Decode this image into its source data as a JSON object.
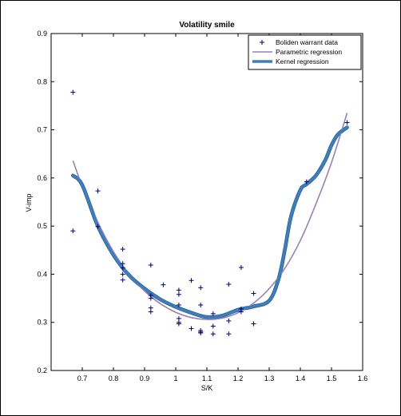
{
  "chart_data": {
    "type": "scatter",
    "title": "Volatility smile",
    "xlabel": "S/K",
    "ylabel": "V-imp",
    "xlim": [
      0.6,
      1.6
    ],
    "ylim": [
      0.2,
      0.9
    ],
    "xticks": [
      "0.7",
      "0.8",
      "0.9",
      "1",
      "1.1",
      "1.2",
      "1.3",
      "1.4",
      "1.5",
      "1.6"
    ],
    "yticks": [
      "0.2",
      "0.3",
      "0.4",
      "0.5",
      "0.6",
      "0.7",
      "0.8",
      "0.9"
    ],
    "grid": false,
    "legend_position": "top-right",
    "series": [
      {
        "name": "Boliden warrant data",
        "type": "scatter",
        "color": "#000080",
        "marker": "plus",
        "x": [
          0.67,
          0.67,
          0.75,
          0.75,
          0.83,
          0.83,
          0.83,
          0.83,
          0.83,
          0.92,
          0.92,
          0.92,
          0.92,
          0.92,
          0.96,
          1.01,
          1.01,
          1.01,
          1.01,
          1.01,
          1.01,
          1.05,
          1.05,
          1.08,
          1.08,
          1.08,
          1.08,
          1.08,
          1.12,
          1.12,
          1.12,
          1.17,
          1.17,
          1.17,
          1.21,
          1.21,
          1.21,
          1.25,
          1.25,
          1.42,
          1.55
        ],
        "y": [
          0.778,
          0.49,
          0.573,
          0.499,
          0.452,
          0.422,
          0.413,
          0.4,
          0.388,
          0.419,
          0.356,
          0.33,
          0.322,
          0.35,
          0.378,
          0.367,
          0.358,
          0.308,
          0.297,
          0.3,
          0.336,
          0.387,
          0.287,
          0.372,
          0.336,
          0.283,
          0.28,
          0.278,
          0.318,
          0.292,
          0.276,
          0.379,
          0.303,
          0.276,
          0.414,
          0.328,
          0.322,
          0.36,
          0.297,
          0.592,
          0.715
        ]
      },
      {
        "name": "Parametric regression",
        "type": "line",
        "color": "#9a7fb3",
        "x": [
          0.67,
          0.7,
          0.75,
          0.8,
          0.85,
          0.9,
          0.95,
          1.0,
          1.05,
          1.1,
          1.15,
          1.2,
          1.25,
          1.3,
          1.35,
          1.4,
          1.45,
          1.5,
          1.55
        ],
        "y": [
          0.636,
          0.583,
          0.508,
          0.447,
          0.4,
          0.365,
          0.339,
          0.321,
          0.31,
          0.306,
          0.309,
          0.32,
          0.34,
          0.37,
          0.412,
          0.47,
          0.546,
          0.632,
          0.735
        ]
      },
      {
        "name": "Kernel regression",
        "type": "line",
        "color": "#3a7fc0",
        "x": [
          0.67,
          0.7,
          0.75,
          0.8,
          0.85,
          0.9,
          0.95,
          1.0,
          1.05,
          1.1,
          1.15,
          1.2,
          1.25,
          1.3,
          1.33,
          1.35,
          1.37,
          1.4,
          1.42,
          1.45,
          1.48,
          1.5,
          1.52,
          1.55
        ],
        "y": [
          0.605,
          0.585,
          0.5,
          0.44,
          0.398,
          0.37,
          0.348,
          0.332,
          0.32,
          0.311,
          0.314,
          0.326,
          0.333,
          0.345,
          0.39,
          0.45,
          0.52,
          0.575,
          0.587,
          0.605,
          0.637,
          0.668,
          0.69,
          0.705
        ]
      }
    ]
  }
}
